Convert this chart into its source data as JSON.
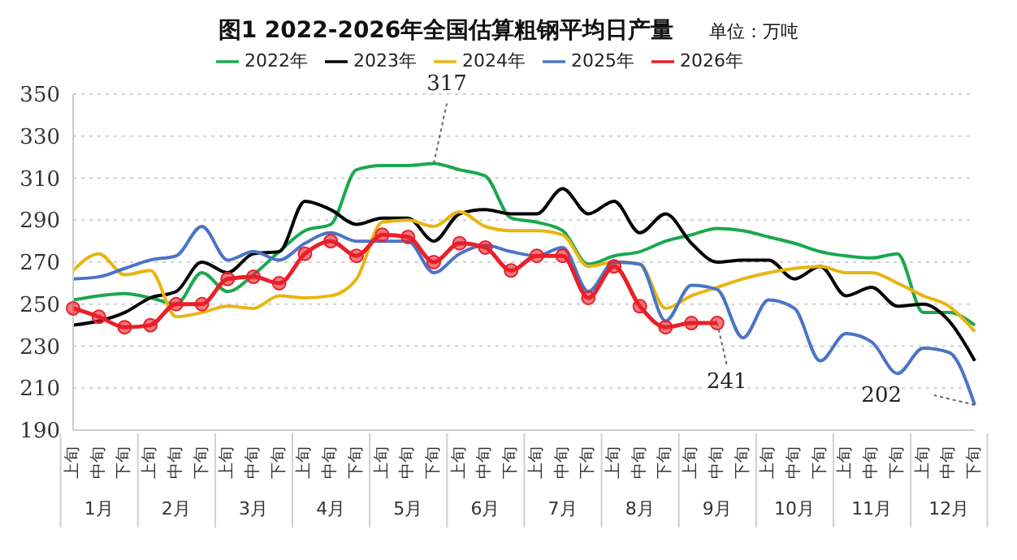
{
  "chart_data": {
    "type": "line",
    "title": "图1 2022-2026年全国估算粗钢平均日产量",
    "subtitle": "单位：万吨",
    "categories": [
      "上旬",
      "中旬",
      "下旬",
      "上旬",
      "中旬",
      "下旬",
      "上旬",
      "中旬",
      "下旬",
      "上旬",
      "中旬",
      "下旬",
      "上旬",
      "中旬",
      "下旬",
      "上旬",
      "中旬",
      "下旬",
      "上旬",
      "中旬",
      "下旬",
      "上旬",
      "中旬",
      "下旬",
      "上旬",
      "中旬",
      "下旬",
      "上旬",
      "中旬",
      "下旬",
      "上旬",
      "中旬",
      "下旬",
      "上旬",
      "中旬",
      "下旬"
    ],
    "series": [
      {
        "name": "2022年",
        "color": "#1aa84f",
        "marker": "none",
        "values": [
          252,
          254,
          255,
          253,
          250,
          265,
          256,
          264,
          275,
          285,
          288,
          314,
          316,
          316,
          317,
          314,
          311,
          291,
          289,
          285,
          269,
          273,
          275,
          280,
          283,
          286,
          285,
          282,
          279,
          275,
          273,
          272,
          274,
          246,
          246,
          240
        ]
      },
      {
        "name": "2023年",
        "color": "#000000",
        "marker": "none",
        "values": [
          240,
          242,
          246,
          253,
          256,
          270,
          265,
          274,
          275,
          299,
          295,
          288,
          291,
          291,
          280,
          293,
          295,
          293,
          293,
          305,
          293,
          299,
          284,
          293,
          279,
          270,
          271,
          271,
          262,
          268,
          254,
          258,
          249,
          250,
          242,
          223
        ]
      },
      {
        "name": "2024年",
        "color": "#e8b511",
        "marker": "none",
        "values": [
          266,
          274,
          264,
          266,
          244,
          246,
          249,
          248,
          254,
          253,
          254,
          262,
          289,
          290,
          287,
          294,
          287,
          285,
          285,
          283,
          268,
          270,
          269,
          248,
          254,
          258,
          262,
          265,
          267,
          268,
          265,
          265,
          260,
          254,
          249,
          237
        ]
      },
      {
        "name": "2025年",
        "color": "#4a74c8",
        "marker": "none",
        "values": [
          262,
          263,
          267,
          271,
          273,
          287,
          271,
          275,
          271,
          279,
          284,
          280,
          280,
          280,
          265,
          274,
          278,
          275,
          273,
          277,
          256,
          270,
          269,
          242,
          259,
          257,
          234,
          252,
          248,
          223,
          236,
          232,
          217,
          229,
          227,
          202
        ]
      },
      {
        "name": "2026年",
        "color": "#e8202a",
        "marker": "circle",
        "values": [
          248,
          244,
          239,
          240,
          250,
          250,
          262,
          263,
          260,
          274,
          280,
          273,
          283,
          282,
          270,
          279,
          277,
          266,
          273,
          273,
          253,
          268,
          249,
          239,
          241,
          241,
          null,
          null,
          null,
          null,
          null,
          null,
          null,
          null,
          null,
          null
        ]
      }
    ],
    "ylim": [
      190,
      350
    ],
    "yticks": [
      190,
      210,
      230,
      250,
      270,
      290,
      310,
      330,
      350
    ],
    "grid": "y",
    "legend": "top",
    "annotations": [
      "1月",
      "2月",
      "3月",
      "4月",
      "5月",
      "6月",
      "7月",
      "8月",
      "9月",
      "10月",
      "11月",
      "12月",
      "317",
      "241",
      "202"
    ]
  }
}
